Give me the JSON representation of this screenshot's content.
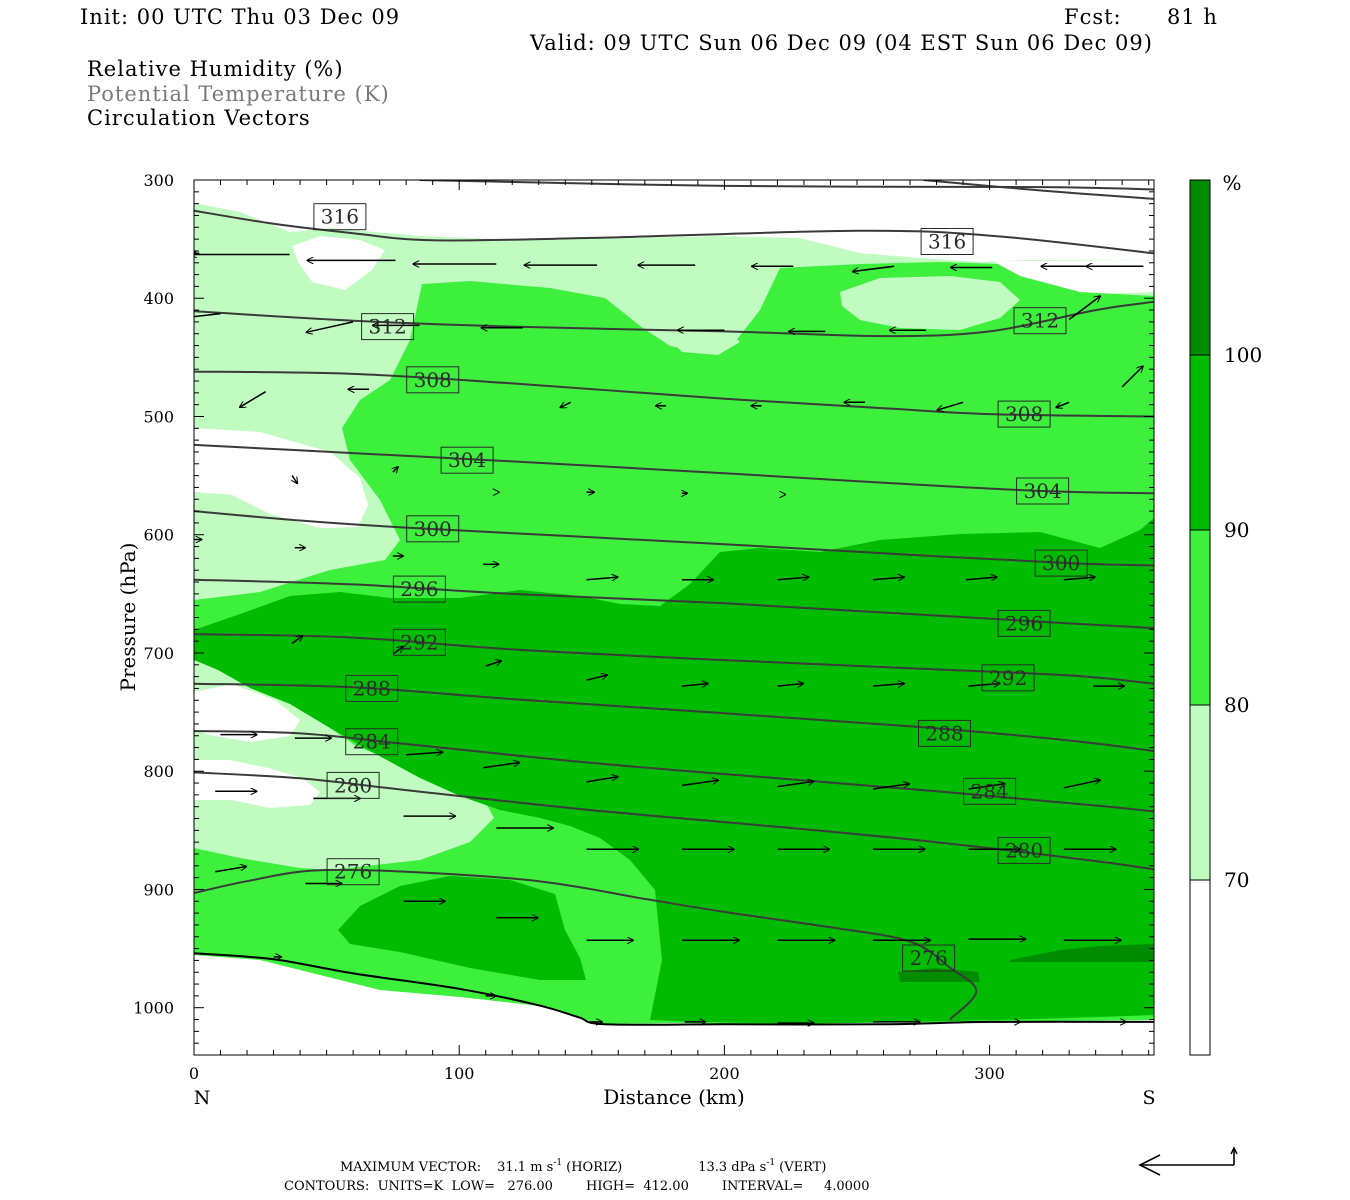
{
  "header": {
    "init": "Init: 00 UTC Thu 03 Dec 09",
    "fcst_label": "Fcst:",
    "fcst_value": "81 h",
    "valid": "Valid: 09 UTC Sun 06 Dec 09 (04 EST Sun 06 Dec 09)"
  },
  "fields": {
    "rh": "Relative Humidity (%)",
    "theta": "Potential Temperature (K)",
    "vectors": "Circulation Vectors"
  },
  "axes": {
    "xlabel": "Distance (km)",
    "ylabel": "Pressure (hPa)",
    "left_end": "N",
    "right_end": "S"
  },
  "colorbar": {
    "unit": "%",
    "levels": [
      "70",
      "80",
      "90",
      "100"
    ],
    "colors": [
      "#ffffff",
      "#c0fcc0",
      "#3cf03c",
      "#00bc00",
      "#008c00"
    ]
  },
  "footer": {
    "max_vector_label": "MAXIMUM VECTOR:",
    "max_horiz": "31.1 m s",
    "horiz_tag": "(HORIZ)",
    "max_vert": "13.3 dPa s",
    "vert_tag": "(VERT)",
    "exp": "-1",
    "contours": "CONTOURS:  UNITS=K  LOW=   276.00        HIGH=  412.00        INTERVAL=     4.0000"
  },
  "chart_data": {
    "type": "contour-cross-section",
    "x_ticks": [
      0,
      100,
      200,
      300
    ],
    "y_ticks": [
      300,
      400,
      500,
      600,
      700,
      800,
      900,
      1000
    ],
    "xlim": [
      0,
      362
    ],
    "ylim": [
      300,
      1040
    ],
    "y_reversed": true,
    "rh_levels": [
      70,
      80,
      90,
      100
    ],
    "theta_labels": [
      {
        "text": "316",
        "x": 55,
        "p": 331
      },
      {
        "text": "316",
        "x": 284,
        "p": 352
      },
      {
        "text": "312",
        "x": 73,
        "p": 424
      },
      {
        "text": "312",
        "x": 319,
        "p": 419
      },
      {
        "text": "308",
        "x": 90,
        "p": 469
      },
      {
        "text": "308",
        "x": 313,
        "p": 498
      },
      {
        "text": "304",
        "x": 103,
        "p": 537
      },
      {
        "text": "304",
        "x": 320,
        "p": 563
      },
      {
        "text": "300",
        "x": 90,
        "p": 595
      },
      {
        "text": "300",
        "x": 327,
        "p": 624
      },
      {
        "text": "296",
        "x": 85,
        "p": 646
      },
      {
        "text": "296",
        "x": 313,
        "p": 675
      },
      {
        "text": "292",
        "x": 85,
        "p": 691
      },
      {
        "text": "292",
        "x": 307,
        "p": 721
      },
      {
        "text": "288",
        "x": 67,
        "p": 730
      },
      {
        "text": "288",
        "x": 283,
        "p": 768
      },
      {
        "text": "284",
        "x": 67,
        "p": 775
      },
      {
        "text": "284",
        "x": 300,
        "p": 817
      },
      {
        "text": "280",
        "x": 60,
        "p": 812
      },
      {
        "text": "280",
        "x": 313,
        "p": 867
      },
      {
        "text": "276",
        "x": 60,
        "p": 885
      },
      {
        "text": "276",
        "x": 277,
        "p": 958
      }
    ],
    "theta_lines": [
      [
        [
          0,
          326
        ],
        [
          30,
          337
        ],
        [
          60,
          345
        ],
        [
          90,
          351
        ],
        [
          150,
          349
        ],
        [
          250,
          343
        ],
        [
          300,
          347
        ],
        [
          362,
          362
        ]
      ],
      [
        [
          0,
          411
        ],
        [
          60,
          419
        ],
        [
          120,
          424
        ],
        [
          200,
          428
        ],
        [
          260,
          432
        ],
        [
          300,
          428
        ],
        [
          340,
          410
        ],
        [
          362,
          403
        ]
      ],
      [
        [
          0,
          462
        ],
        [
          60,
          464
        ],
        [
          120,
          472
        ],
        [
          200,
          485
        ],
        [
          260,
          493
        ],
        [
          300,
          498
        ],
        [
          362,
          500
        ]
      ],
      [
        [
          0,
          524
        ],
        [
          60,
          531
        ],
        [
          120,
          538
        ],
        [
          200,
          548
        ],
        [
          260,
          556
        ],
        [
          320,
          563
        ],
        [
          362,
          565
        ]
      ],
      [
        [
          0,
          580
        ],
        [
          40,
          588
        ],
        [
          80,
          594
        ],
        [
          140,
          601
        ],
        [
          200,
          608
        ],
        [
          270,
          617
        ],
        [
          330,
          624
        ],
        [
          362,
          626
        ]
      ],
      [
        [
          0,
          638
        ],
        [
          60,
          642
        ],
        [
          120,
          650
        ],
        [
          200,
          658
        ],
        [
          270,
          667
        ],
        [
          330,
          675
        ],
        [
          362,
          679
        ]
      ],
      [
        [
          0,
          684
        ],
        [
          60,
          687
        ],
        [
          120,
          697
        ],
        [
          200,
          706
        ],
        [
          270,
          713
        ],
        [
          330,
          719
        ],
        [
          362,
          726
        ]
      ],
      [
        [
          0,
          726
        ],
        [
          60,
          729
        ],
        [
          120,
          739
        ],
        [
          200,
          751
        ],
        [
          270,
          762
        ],
        [
          330,
          774
        ],
        [
          362,
          783
        ]
      ],
      [
        [
          0,
          766
        ],
        [
          40,
          768
        ],
        [
          80,
          777
        ],
        [
          150,
          793
        ],
        [
          220,
          806
        ],
        [
          280,
          817
        ],
        [
          340,
          829
        ],
        [
          362,
          834
        ]
      ],
      [
        [
          0,
          801
        ],
        [
          40,
          806
        ],
        [
          80,
          816
        ],
        [
          150,
          833
        ],
        [
          220,
          847
        ],
        [
          280,
          860
        ],
        [
          340,
          876
        ],
        [
          362,
          883
        ]
      ],
      [
        [
          0,
          903
        ],
        [
          20,
          893
        ],
        [
          45,
          884
        ],
        [
          80,
          885
        ],
        [
          130,
          893
        ],
        [
          170,
          908
        ],
        [
          200,
          919
        ],
        [
          240,
          932
        ],
        [
          270,
          944
        ],
        [
          285,
          966
        ],
        [
          295,
          986
        ],
        [
          285,
          1010
        ]
      ]
    ],
    "upper_lines": [
      [
        [
          85,
          300
        ],
        [
          200,
          305
        ],
        [
          320,
          306
        ],
        [
          362,
          308
        ]
      ],
      [
        [
          275,
          300
        ],
        [
          320,
          309
        ],
        [
          362,
          316
        ]
      ]
    ],
    "terrain": [
      [
        0,
        954
      ],
      [
        30,
        959
      ],
      [
        60,
        971
      ],
      [
        100,
        984
      ],
      [
        130,
        998
      ],
      [
        145,
        1008
      ],
      [
        155,
        1014
      ],
      [
        200,
        1014
      ],
      [
        260,
        1014
      ],
      [
        300,
        1012
      ],
      [
        362,
        1012
      ]
    ],
    "vectors": [
      {
        "x": 2,
        "p": 362,
        "u": -32,
        "w": 0
      },
      {
        "x": 36,
        "p": 363,
        "u": -38,
        "w": 0
      },
      {
        "x": 76,
        "p": 368,
        "u": -34,
        "w": 0
      },
      {
        "x": 114,
        "p": 371,
        "u": -32,
        "w": 0
      },
      {
        "x": 152,
        "p": 372,
        "u": -28,
        "w": 0
      },
      {
        "x": 189,
        "p": 372,
        "u": -22,
        "w": 0
      },
      {
        "x": 226,
        "p": 373,
        "u": -16,
        "w": 0
      },
      {
        "x": 264,
        "p": 373,
        "u": -16,
        "w": 2
      },
      {
        "x": 301,
        "p": 374,
        "u": -16,
        "w": 0
      },
      {
        "x": 339,
        "p": 373,
        "u": -20,
        "w": 0
      },
      {
        "x": 358,
        "p": 373,
        "u": -22,
        "w": 0
      },
      {
        "x": 10,
        "p": 413,
        "u": -26,
        "w": 3
      },
      {
        "x": 60,
        "p": 420,
        "u": -18,
        "w": 4
      },
      {
        "x": 85,
        "p": 423,
        "u": -18,
        "w": 0
      },
      {
        "x": 124,
        "p": 425,
        "u": -16,
        "w": 0
      },
      {
        "x": 200,
        "p": 427,
        "u": -18,
        "w": 0
      },
      {
        "x": 238,
        "p": 428,
        "u": -14,
        "w": 0
      },
      {
        "x": 276,
        "p": 427,
        "u": -14,
        "w": 0
      },
      {
        "x": 330,
        "p": 418,
        "u": 12,
        "w": -9
      },
      {
        "x": 27,
        "p": 479,
        "u": -10,
        "w": 6
      },
      {
        "x": 66,
        "p": 477,
        "u": -8,
        "w": 0
      },
      {
        "x": 142,
        "p": 488,
        "u": -4,
        "w": 2
      },
      {
        "x": 178,
        "p": 491,
        "u": -4,
        "w": 0
      },
      {
        "x": 214,
        "p": 491,
        "u": -4,
        "w": 0
      },
      {
        "x": 253,
        "p": 488,
        "u": -8,
        "w": 0
      },
      {
        "x": 290,
        "p": 488,
        "u": -10,
        "w": 3
      },
      {
        "x": 330,
        "p": 488,
        "u": -5,
        "w": 2
      },
      {
        "x": 350,
        "p": 475,
        "u": 8,
        "w": -8
      },
      {
        "x": 37,
        "p": 550,
        "u": 2,
        "w": 3
      },
      {
        "x": 75,
        "p": 547,
        "u": 2,
        "w": -2
      },
      {
        "x": 115,
        "p": 564,
        "u": 0,
        "w": 0
      },
      {
        "x": 148,
        "p": 564,
        "u": 3,
        "w": 0
      },
      {
        "x": 184,
        "p": 565,
        "u": 2,
        "w": 0
      },
      {
        "x": 223,
        "p": 566,
        "u": 0,
        "w": 0
      },
      {
        "x": 0,
        "p": 604,
        "u": 3,
        "w": 0
      },
      {
        "x": 38,
        "p": 611,
        "u": 4,
        "w": 0
      },
      {
        "x": 75,
        "p": 618,
        "u": 4,
        "w": 0
      },
      {
        "x": 109,
        "p": 625,
        "u": 6,
        "w": 0
      },
      {
        "x": 148,
        "p": 638,
        "u": 12,
        "w": -1
      },
      {
        "x": 184,
        "p": 638,
        "u": 12,
        "w": 0
      },
      {
        "x": 220,
        "p": 638,
        "u": 12,
        "w": -1
      },
      {
        "x": 256,
        "p": 638,
        "u": 12,
        "w": -1
      },
      {
        "x": 291,
        "p": 638,
        "u": 12,
        "w": -1
      },
      {
        "x": 328,
        "p": 638,
        "u": 12,
        "w": -1
      },
      {
        "x": 37,
        "p": 692,
        "u": 4,
        "w": -3
      },
      {
        "x": 75,
        "p": 701,
        "u": 4,
        "w": -3
      },
      {
        "x": 110,
        "p": 711,
        "u": 6,
        "w": -2
      },
      {
        "x": 148,
        "p": 723,
        "u": 8,
        "w": -2
      },
      {
        "x": 184,
        "p": 728,
        "u": 10,
        "w": -1
      },
      {
        "x": 220,
        "p": 728,
        "u": 10,
        "w": -1
      },
      {
        "x": 256,
        "p": 728,
        "u": 12,
        "w": -1
      },
      {
        "x": 292,
        "p": 728,
        "u": 12,
        "w": -1
      },
      {
        "x": 339,
        "p": 728,
        "u": 12,
        "w": 0
      },
      {
        "x": 10,
        "p": 769,
        "u": 14,
        "w": 0
      },
      {
        "x": 38,
        "p": 772,
        "u": 14,
        "w": 0
      },
      {
        "x": 80,
        "p": 786,
        "u": 14,
        "w": -1
      },
      {
        "x": 109,
        "p": 797,
        "u": 14,
        "w": -2
      },
      {
        "x": 148,
        "p": 809,
        "u": 12,
        "w": -2
      },
      {
        "x": 184,
        "p": 812,
        "u": 14,
        "w": -2
      },
      {
        "x": 220,
        "p": 813,
        "u": 14,
        "w": -2
      },
      {
        "x": 256,
        "p": 815,
        "u": 14,
        "w": -2
      },
      {
        "x": 292,
        "p": 815,
        "u": 14,
        "w": -2
      },
      {
        "x": 328,
        "p": 814,
        "u": 14,
        "w": -3
      },
      {
        "x": 8,
        "p": 817,
        "u": 16,
        "w": 0
      },
      {
        "x": 45,
        "p": 823,
        "u": 18,
        "w": 0
      },
      {
        "x": 79,
        "p": 838,
        "u": 20,
        "w": 0
      },
      {
        "x": 114,
        "p": 848,
        "u": 22,
        "w": 0
      },
      {
        "x": 148,
        "p": 866,
        "u": 20,
        "w": 0
      },
      {
        "x": 184,
        "p": 866,
        "u": 20,
        "w": 0
      },
      {
        "x": 220,
        "p": 866,
        "u": 20,
        "w": 0
      },
      {
        "x": 256,
        "p": 866,
        "u": 20,
        "w": 0
      },
      {
        "x": 292,
        "p": 866,
        "u": 20,
        "w": 0
      },
      {
        "x": 328,
        "p": 866,
        "u": 20,
        "w": 0
      },
      {
        "x": 8,
        "p": 885,
        "u": 12,
        "w": -2
      },
      {
        "x": 42,
        "p": 895,
        "u": 14,
        "w": 0
      },
      {
        "x": 79,
        "p": 910,
        "u": 16,
        "w": 0
      },
      {
        "x": 114,
        "p": 924,
        "u": 16,
        "w": 0
      },
      {
        "x": 148,
        "p": 943,
        "u": 18,
        "w": 0
      },
      {
        "x": 184,
        "p": 943,
        "u": 22,
        "w": 0
      },
      {
        "x": 220,
        "p": 943,
        "u": 22,
        "w": 0
      },
      {
        "x": 256,
        "p": 943,
        "u": 22,
        "w": 0
      },
      {
        "x": 292,
        "p": 942,
        "u": 22,
        "w": 0
      },
      {
        "x": 328,
        "p": 943,
        "u": 22,
        "w": 0
      },
      {
        "x": 30,
        "p": 957,
        "u": 3,
        "w": 0
      },
      {
        "x": 110,
        "p": 990,
        "u": 4,
        "w": 0
      },
      {
        "x": 148,
        "p": 1012,
        "u": 6,
        "w": 0
      },
      {
        "x": 185,
        "p": 1012,
        "u": 8,
        "w": 0
      },
      {
        "x": 220,
        "p": 1013,
        "u": 14,
        "w": 0
      },
      {
        "x": 256,
        "p": 1012,
        "u": 18,
        "w": 0
      },
      {
        "x": 292,
        "p": 1012,
        "u": 20,
        "w": 0
      },
      {
        "x": 328,
        "p": 1012,
        "u": 24,
        "w": 0
      }
    ]
  }
}
